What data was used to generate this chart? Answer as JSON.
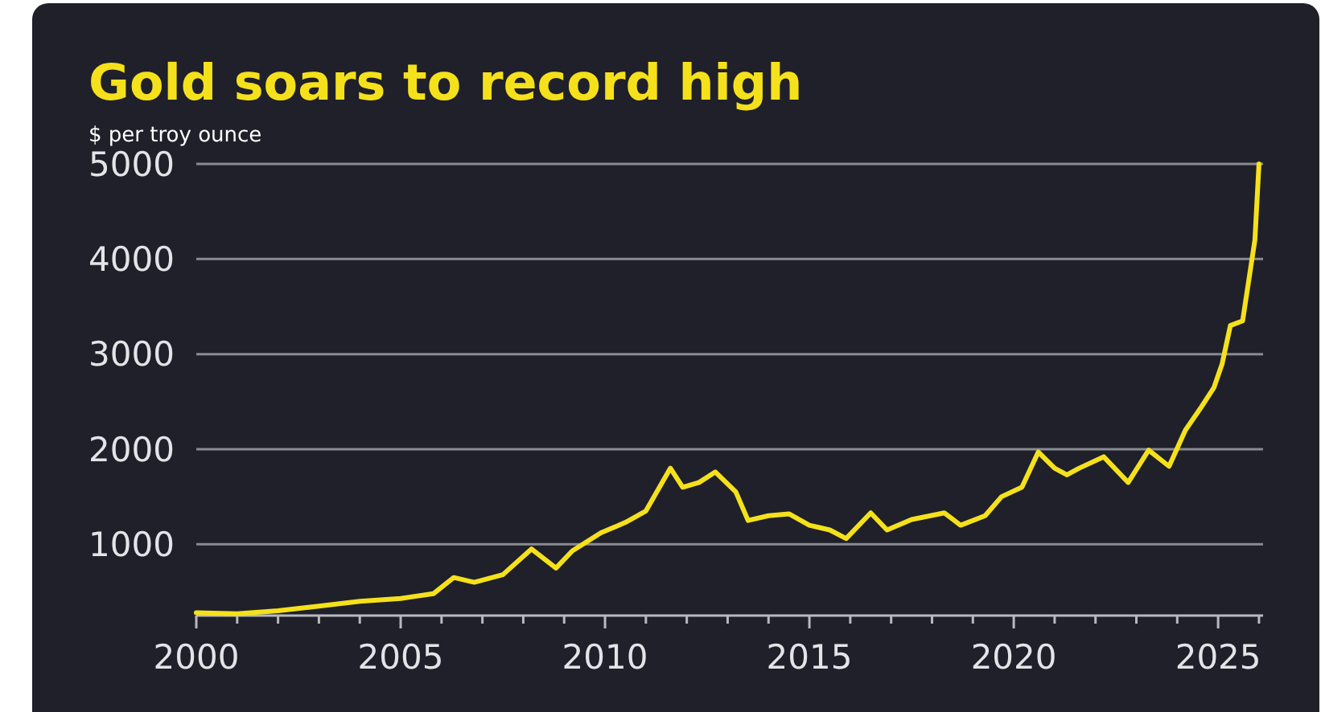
{
  "chart_data": {
    "type": "line",
    "title": "Gold soars to record high",
    "ylabel": "$ per troy ounce",
    "xlim": [
      2000,
      2026.1
    ],
    "ylim": [
      250,
      5000
    ],
    "xticks": [
      2000,
      {
        "value": 2001,
        "label": null
      },
      {
        "value": 2002,
        "label": null
      },
      {
        "value": 2003,
        "label": null
      },
      {
        "value": 2004,
        "label": null
      },
      2005,
      {
        "value": 2006,
        "label": null
      },
      {
        "value": 2007,
        "label": null
      },
      {
        "value": 2008,
        "label": null
      },
      {
        "value": 2009,
        "label": null
      },
      2010,
      {
        "value": 2011,
        "label": null
      },
      {
        "value": 2012,
        "label": null
      },
      {
        "value": 2013,
        "label": null
      },
      {
        "value": 2014,
        "label": null
      },
      2015,
      {
        "value": 2016,
        "label": null
      },
      {
        "value": 2017,
        "label": null
      },
      {
        "value": 2018,
        "label": null
      },
      {
        "value": 2019,
        "label": null
      },
      2020,
      {
        "value": 2021,
        "label": null
      },
      {
        "value": 2022,
        "label": null
      },
      {
        "value": 2023,
        "label": null
      },
      {
        "value": 2024,
        "label": null
      },
      2025,
      {
        "value": 2026,
        "label": null
      }
    ],
    "yticks": [
      1000,
      2000,
      3000,
      4000,
      5000
    ],
    "grid": "y",
    "marker": "none",
    "line_style": "solid",
    "series": [
      {
        "color": "#f5e11b",
        "x": [
          2000,
          2001,
          2002,
          2003,
          2004,
          2005,
          2005.8,
          2006.3,
          2006.8,
          2007.5,
          2008.2,
          2008.8,
          2009.2,
          2009.9,
          2010.5,
          2011.0,
          2011.6,
          2011.9,
          2012.3,
          2012.7,
          2013.2,
          2013.5,
          2014,
          2014.5,
          2015,
          2015.5,
          2015.9,
          2016.5,
          2016.9,
          2017.5,
          2018.3,
          2018.7,
          2019.3,
          2019.7,
          2020.2,
          2020.6,
          2021.0,
          2021.3,
          2021.6,
          2022.2,
          2022.8,
          2023.3,
          2023.8,
          2024.2,
          2024.6,
          2024.9,
          2025.1,
          2025.3,
          2025.6,
          2025.9,
          2026
        ],
        "values": [
          280,
          270,
          300,
          350,
          400,
          430,
          480,
          650,
          600,
          680,
          950,
          750,
          930,
          1120,
          1230,
          1350,
          1800,
          1600,
          1650,
          1760,
          1550,
          1250,
          1300,
          1320,
          1200,
          1150,
          1060,
          1330,
          1150,
          1260,
          1330,
          1200,
          1300,
          1500,
          1600,
          1970,
          1800,
          1730,
          1800,
          1920,
          1650,
          1990,
          1820,
          2200,
          2450,
          2650,
          2900,
          3300,
          3350,
          4200,
          5000
        ]
      }
    ]
  }
}
